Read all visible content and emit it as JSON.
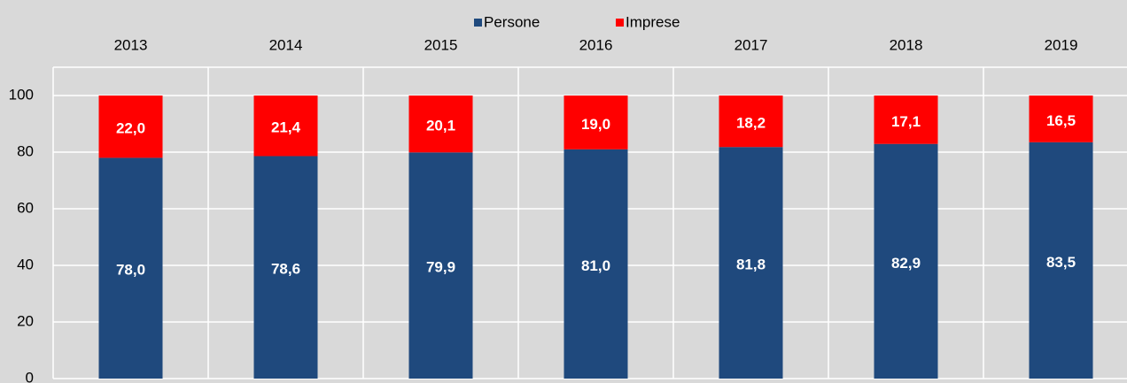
{
  "chart_data": {
    "type": "stacked_bar",
    "categories": [
      "2013",
      "2014",
      "2015",
      "2016",
      "2017",
      "2018",
      "2019"
    ],
    "series": [
      {
        "name": "Persone",
        "color": "#1f497d",
        "values": [
          78.0,
          78.6,
          79.9,
          81.0,
          81.8,
          82.9,
          83.5
        ],
        "value_labels": [
          "78,0",
          "78,6",
          "79,9",
          "81,0",
          "81,8",
          "82,9",
          "83,5"
        ]
      },
      {
        "name": "Imprese",
        "color": "#ff0000",
        "values": [
          22.0,
          21.4,
          20.1,
          19.0,
          18.2,
          17.1,
          16.5
        ],
        "value_labels": [
          "22,0",
          "21,4",
          "20,1",
          "19,0",
          "18,2",
          "17,1",
          "16,5"
        ]
      }
    ],
    "ylim": [
      0,
      110
    ],
    "yticks": [
      0,
      20,
      40,
      60,
      80,
      100
    ],
    "grid": true,
    "legend": "top"
  }
}
